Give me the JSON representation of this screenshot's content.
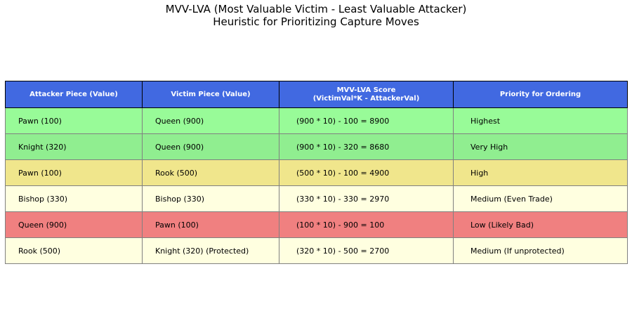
{
  "chart_data": {
    "type": "table",
    "title": "MVV-LVA (Most Valuable Victim - Least Valuable Attacker)",
    "subtitle": "Heuristic for Prioritizing Capture Moves",
    "header_color": "#4169e1",
    "columns": [
      "Attacker Piece (Value)",
      "Victim Piece (Value)",
      "MVV-LVA Score\n(VictimVal*K - AttackerVal)",
      "Priority for Ordering"
    ],
    "rows": [
      {
        "cells": [
          "Pawn (100)",
          "Queen (900)",
          "(900 * 10) - 100 = 8900",
          "Highest"
        ],
        "color": "#98fb98"
      },
      {
        "cells": [
          "Knight (320)",
          "Queen (900)",
          "(900 * 10) - 320 = 8680",
          "Very High"
        ],
        "color": "#90ee90"
      },
      {
        "cells": [
          "Pawn (100)",
          "Rook (500)",
          "(500 * 10) - 100 = 4900",
          "High"
        ],
        "color": "#f0e68c"
      },
      {
        "cells": [
          "Bishop (330)",
          "Bishop (330)",
          "(330 * 10) - 330 = 2970",
          "Medium (Even Trade)"
        ],
        "color": "#ffffe0"
      },
      {
        "cells": [
          "Queen (900)",
          "Pawn (100)",
          "(100 * 10) - 900 = 100",
          "Low (Likely Bad)"
        ],
        "color": "#f08080"
      },
      {
        "cells": [
          "Rook (500)",
          "Knight (320) (Protected)",
          "(320 * 10) - 500 = 2700",
          "Medium (If unprotected)"
        ],
        "color": "#ffffe0"
      }
    ]
  }
}
